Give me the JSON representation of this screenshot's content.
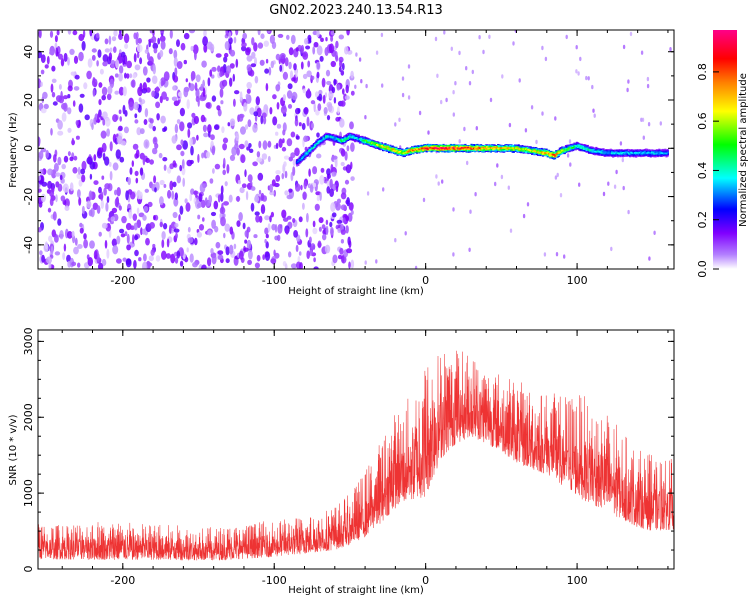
{
  "title": "GN02.2023.240.13.54.R13",
  "chart_data": [
    {
      "type": "heatmap",
      "panel": "top",
      "xlabel": "Height of straight line (km)",
      "ylabel": "Frequency (Hz)",
      "xlim": [
        -256,
        164
      ],
      "ylim": [
        -50,
        49
      ],
      "xticks": [
        -200,
        -100,
        0,
        100
      ],
      "yticks": [
        -40,
        -20,
        0,
        20,
        40
      ],
      "colorbar": {
        "label": "Normalized spectral amplitude",
        "range": [
          0,
          0.97
        ],
        "ticks": [
          "0.0",
          "0.2",
          "0.4",
          "0.6",
          "0.8"
        ],
        "tick_values": [
          0.0,
          0.2,
          0.4,
          0.6,
          0.8
        ],
        "colors": [
          "#ffffff",
          "#8800ff",
          "#0000ff",
          "#00ffff",
          "#00ff00",
          "#ffff00",
          "#ff8800",
          "#ff0000",
          "#ff0088"
        ]
      },
      "noise_region": {
        "x_range": [
          -256,
          -48
        ],
        "f_range": [
          -50,
          49
        ],
        "typical_amplitude": 0.12
      },
      "ridge": {
        "x": [
          -85,
          -80,
          -75,
          -70,
          -65,
          -60,
          -55,
          -50,
          -45,
          -40,
          -35,
          -30,
          -25,
          -20,
          -15,
          -10,
          0,
          10,
          20,
          30,
          40,
          50,
          60,
          70,
          80,
          85,
          90,
          95,
          100,
          110,
          120,
          130,
          140,
          150,
          160
        ],
        "frequency": [
          -6,
          -3,
          0,
          3,
          5,
          4,
          3,
          5,
          4,
          3,
          2,
          1,
          0,
          -1,
          -2,
          -1,
          0,
          0,
          0,
          0,
          0,
          0,
          0,
          -1,
          -2,
          -3,
          -1,
          0,
          1,
          -1,
          -2,
          -2,
          -2,
          -2,
          -2
        ],
        "amplitude": [
          0.3,
          0.35,
          0.4,
          0.35,
          0.4,
          0.35,
          0.45,
          0.4,
          0.35,
          0.5,
          0.55,
          0.6,
          0.65,
          0.7,
          0.6,
          0.75,
          0.85,
          0.9,
          0.85,
          0.8,
          0.75,
          0.7,
          0.65,
          0.6,
          0.75,
          0.8,
          0.6,
          0.5,
          0.45,
          0.4,
          0.35,
          0.35,
          0.35,
          0.35,
          0.35
        ]
      }
    },
    {
      "type": "line",
      "panel": "bottom",
      "xlabel": "Height of straight line (km)",
      "ylabel": "SNR (10 * v/v)",
      "xlim": [
        -256,
        164
      ],
      "ylim": [
        0,
        3150
      ],
      "xticks": [
        -200,
        -100,
        0,
        100
      ],
      "yticks": [
        0,
        1000,
        2000,
        3000
      ],
      "color": "#ee3333",
      "envelope": {
        "x": [
          -256,
          -220,
          -180,
          -140,
          -100,
          -80,
          -60,
          -50,
          -40,
          -30,
          -20,
          -10,
          0,
          10,
          20,
          30,
          40,
          50,
          60,
          70,
          80,
          90,
          100,
          110,
          120,
          130,
          140,
          150,
          164
        ],
        "low": [
          130,
          120,
          120,
          110,
          160,
          200,
          250,
          320,
          420,
          600,
          800,
          900,
          950,
          1450,
          1650,
          1750,
          1650,
          1550,
          1400,
          1300,
          1250,
          1100,
          950,
          850,
          750,
          650,
          550,
          500,
          520
        ],
        "high": [
          600,
          650,
          600,
          550,
          650,
          700,
          850,
          1000,
          1300,
          1700,
          2100,
          2300,
          2800,
          2900,
          2950,
          2850,
          2700,
          2600,
          2500,
          2400,
          2350,
          2300,
          2350,
          2200,
          2100,
          1800,
          1600,
          1500,
          1450
        ]
      }
    }
  ]
}
